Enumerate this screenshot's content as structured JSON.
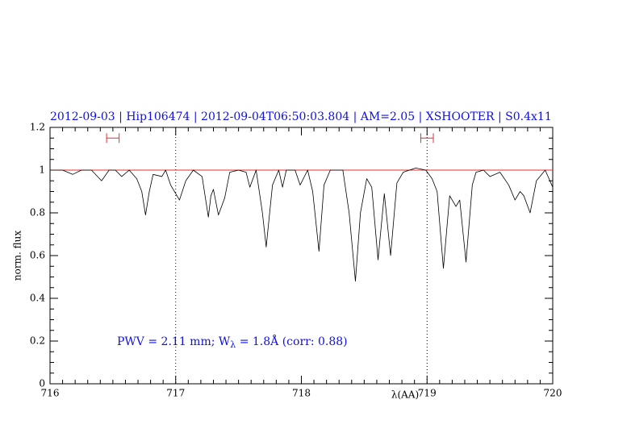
{
  "chart_data": {
    "type": "line",
    "title": "2012-09-03 | Hip106474 | 2012-09-04T06:50:03.804 | AM=2.05 | XSHOOTER | S0.4x11",
    "x_label": "λ(AA)",
    "y_label": "norm. flux",
    "annotation": [
      "PWV = 2.11 mm; W",
      "λ",
      " = 1.8Å (corr: 0.88)"
    ],
    "xlim": [
      716,
      720
    ],
    "ylim": [
      0,
      1.2
    ],
    "xticks": [
      716,
      717,
      718,
      719,
      720
    ],
    "yticks": [
      0,
      0.2,
      0.4,
      0.6,
      0.8,
      1,
      1.2
    ],
    "vlines": [
      717,
      719
    ],
    "hline": 1,
    "hline_color": "#e03030",
    "ranges": [
      [
        716.45,
        716.55
      ],
      [
        718.95,
        719.05
      ]
    ],
    "range_level": 1.15,
    "x": [
      716.0,
      716.1,
      716.18,
      716.25,
      716.33,
      716.41,
      716.47,
      716.52,
      716.57,
      716.63,
      716.69,
      716.73,
      716.76,
      716.79,
      716.82,
      716.89,
      716.92,
      716.96,
      717.03,
      717.08,
      717.14,
      717.21,
      717.26,
      717.28,
      717.3,
      717.34,
      717.39,
      717.43,
      717.5,
      717.56,
      717.59,
      717.64,
      717.69,
      717.72,
      717.77,
      717.82,
      717.85,
      717.88,
      717.95,
      717.99,
      718.05,
      718.09,
      718.14,
      718.18,
      718.23,
      718.33,
      718.38,
      718.43,
      718.47,
      718.52,
      718.56,
      718.61,
      718.66,
      718.71,
      718.76,
      718.81,
      718.91,
      718.99,
      719.04,
      719.08,
      719.13,
      719.18,
      719.23,
      719.26,
      719.31,
      719.36,
      719.39,
      719.45,
      719.5,
      719.58,
      719.65,
      719.7,
      719.74,
      719.77,
      719.82,
      719.87,
      719.94,
      720.0
    ],
    "series": [
      {
        "name": "flux",
        "color": "#000000",
        "values": [
          1.0,
          1.0,
          0.98,
          1.0,
          1.0,
          0.95,
          1.0,
          1.0,
          0.97,
          1.0,
          0.96,
          0.9,
          0.79,
          0.9,
          0.98,
          0.97,
          1.0,
          0.93,
          0.86,
          0.95,
          1.0,
          0.97,
          0.78,
          0.88,
          0.91,
          0.79,
          0.87,
          0.99,
          1.0,
          0.99,
          0.92,
          1.0,
          0.8,
          0.64,
          0.93,
          1.0,
          0.92,
          1.0,
          1.0,
          0.93,
          1.0,
          0.9,
          0.62,
          0.93,
          1.0,
          1.0,
          0.8,
          0.48,
          0.8,
          0.96,
          0.92,
          0.58,
          0.89,
          0.6,
          0.94,
          0.99,
          1.01,
          1.0,
          0.96,
          0.9,
          0.54,
          0.88,
          0.83,
          0.86,
          0.57,
          0.93,
          0.99,
          1.0,
          0.97,
          0.99,
          0.93,
          0.86,
          0.9,
          0.88,
          0.8,
          0.95,
          1.0,
          0.92
        ]
      }
    ]
  }
}
